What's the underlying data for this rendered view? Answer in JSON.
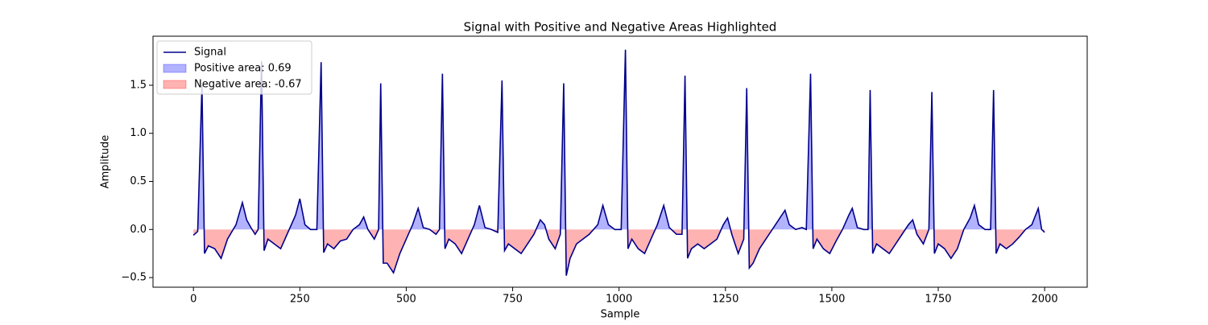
{
  "chart_data": {
    "type": "line",
    "title": "Signal with Positive and Negative Areas Highlighted",
    "xlabel": "Sample",
    "ylabel": "Amplitude",
    "x": [
      0,
      10,
      20,
      26,
      35,
      50,
      65,
      80,
      100,
      115,
      125,
      135,
      145,
      152,
      160,
      166,
      175,
      190,
      205,
      220,
      240,
      250,
      262,
      275,
      290,
      300,
      306,
      315,
      330,
      345,
      360,
      375,
      390,
      400,
      410,
      425,
      435,
      440,
      446,
      455,
      470,
      485,
      500,
      515,
      528,
      540,
      555,
      570,
      578,
      585,
      591,
      600,
      615,
      630,
      645,
      660,
      672,
      685,
      700,
      715,
      725,
      731,
      740,
      755,
      770,
      785,
      800,
      815,
      825,
      835,
      850,
      862,
      870,
      876,
      885,
      900,
      915,
      930,
      950,
      962,
      975,
      990,
      1005,
      1015,
      1021,
      1030,
      1045,
      1060,
      1075,
      1090,
      1105,
      1118,
      1135,
      1148,
      1155,
      1161,
      1170,
      1185,
      1200,
      1215,
      1230,
      1245,
      1255,
      1265,
      1280,
      1293,
      1300,
      1306,
      1315,
      1330,
      1345,
      1360,
      1375,
      1390,
      1400,
      1415,
      1430,
      1440,
      1450,
      1456,
      1465,
      1480,
      1495,
      1510,
      1525,
      1540,
      1548,
      1560,
      1575,
      1585,
      1590,
      1596,
      1605,
      1620,
      1635,
      1650,
      1665,
      1680,
      1690,
      1700,
      1715,
      1728,
      1735,
      1741,
      1750,
      1765,
      1780,
      1795,
      1810,
      1825,
      1835,
      1845,
      1860,
      1873,
      1880,
      1886,
      1895,
      1910,
      1925,
      1940,
      1955,
      1970,
      1985,
      1993,
      2000
    ],
    "series": [
      {
        "name": "Signal",
        "color": "#00008b",
        "values": [
          -0.06,
          -0.02,
          1.5,
          -0.25,
          -0.17,
          -0.2,
          -0.3,
          -0.1,
          0.05,
          0.28,
          0.1,
          0.02,
          -0.05,
          0.0,
          1.75,
          -0.22,
          -0.1,
          -0.15,
          -0.2,
          -0.05,
          0.15,
          0.32,
          0.05,
          0.0,
          0.0,
          1.74,
          -0.24,
          -0.15,
          -0.2,
          -0.12,
          -0.1,
          0.0,
          0.05,
          0.13,
          0.0,
          -0.1,
          0.0,
          1.52,
          -0.35,
          -0.35,
          -0.45,
          -0.25,
          -0.1,
          0.05,
          0.22,
          0.02,
          0.0,
          -0.05,
          0.0,
          1.62,
          -0.2,
          -0.1,
          -0.15,
          -0.25,
          -0.1,
          0.05,
          0.25,
          0.02,
          0.0,
          -0.03,
          1.55,
          -0.22,
          -0.15,
          -0.2,
          -0.25,
          -0.15,
          -0.05,
          0.1,
          0.05,
          -0.1,
          -0.2,
          -0.05,
          1.52,
          -0.48,
          -0.3,
          -0.15,
          -0.1,
          -0.05,
          0.05,
          0.25,
          0.05,
          0.0,
          0.0,
          1.87,
          -0.2,
          -0.1,
          -0.2,
          -0.25,
          -0.1,
          0.05,
          0.25,
          0.02,
          -0.05,
          -0.05,
          1.6,
          -0.3,
          -0.2,
          -0.15,
          -0.2,
          -0.15,
          -0.1,
          0.05,
          0.12,
          -0.05,
          -0.25,
          -0.1,
          1.47,
          -0.4,
          -0.35,
          -0.2,
          -0.1,
          0.0,
          0.1,
          0.2,
          0.05,
          0.0,
          0.02,
          0.0,
          1.62,
          -0.2,
          -0.1,
          -0.2,
          -0.25,
          -0.12,
          0.0,
          0.15,
          0.22,
          0.02,
          0.0,
          0.0,
          1.45,
          -0.25,
          -0.15,
          -0.2,
          -0.25,
          -0.15,
          -0.05,
          0.05,
          0.1,
          -0.05,
          -0.15,
          0.0,
          1.43,
          -0.25,
          -0.15,
          -0.2,
          -0.3,
          -0.2,
          0.0,
          0.12,
          0.25,
          0.05,
          0.0,
          0.0,
          1.45,
          -0.25,
          -0.15,
          -0.2,
          -0.15,
          -0.08,
          0.0,
          0.05,
          0.22,
          0.0,
          -0.03
        ]
      }
    ],
    "fills": [
      {
        "name": "Positive area: 0.69",
        "color": "#0000ff",
        "where": "positive"
      },
      {
        "name": "Negative area: -0.67",
        "color": "#ff0000",
        "where": "negative"
      }
    ],
    "xlim": [
      -95,
      2100
    ],
    "xticks": [
      0,
      250,
      500,
      750,
      1000,
      1250,
      1500,
      1750,
      2000
    ],
    "ylim": [
      -0.6,
      2.01
    ],
    "yticks": [
      {
        "value": -0.5,
        "label": "−0.5"
      },
      {
        "value": 0,
        "label": "0.0"
      },
      0.5,
      {
        "value": 1,
        "label": "1.0"
      },
      1.5
    ],
    "legend": "upper left"
  }
}
